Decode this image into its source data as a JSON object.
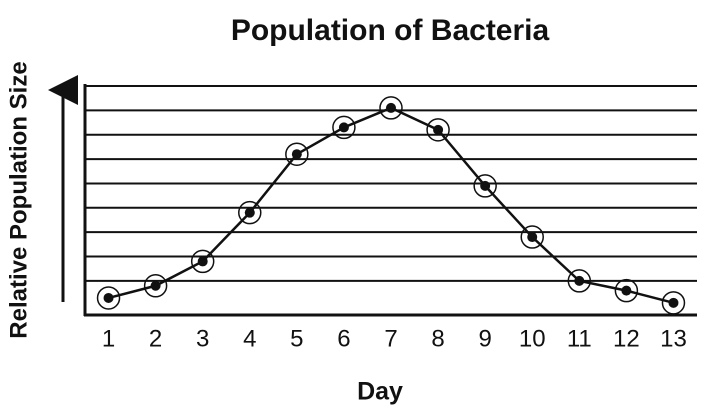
{
  "chart_data": {
    "type": "line",
    "title": "Population of Bacteria",
    "x_label": "Day",
    "y_label": "Relative Population Size",
    "x": [
      1,
      2,
      3,
      4,
      5,
      6,
      7,
      8,
      9,
      10,
      11,
      12,
      13
    ],
    "series": [
      {
        "color": "#111111",
        "values": [
          0.3,
          0.8,
          1.8,
          3.8,
          6.2,
          7.3,
          8.1,
          7.2,
          4.9,
          2.8,
          1.0,
          0.6,
          0.1
        ]
      }
    ],
    "xlim": [
      0.5,
      13.5
    ],
    "xticks": [
      1,
      2,
      3,
      4,
      5,
      6,
      7,
      8,
      9,
      10,
      11,
      12,
      13
    ],
    "ylim": [
      -0.4,
      9
    ],
    "yticks": [
      1,
      2,
      3,
      4,
      5,
      6,
      7,
      8,
      9
    ],
    "grid": true
  }
}
